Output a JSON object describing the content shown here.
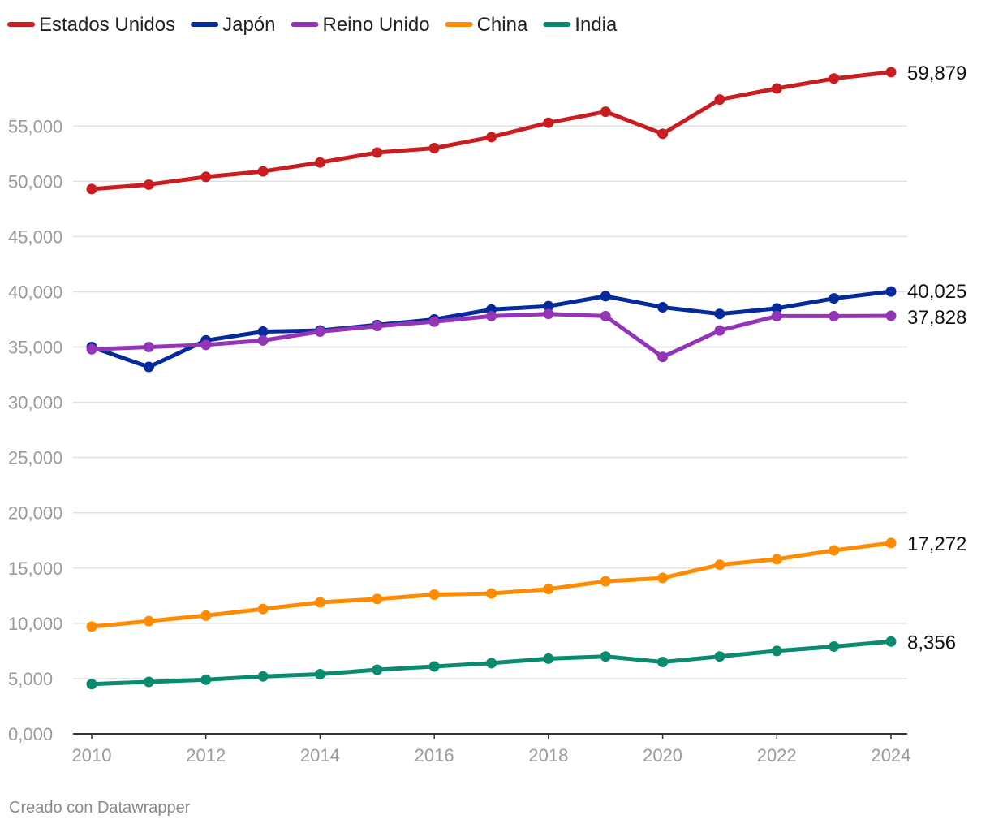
{
  "footer": "Creado con Datawrapper",
  "colors": {
    "grid": "#e0e0e0",
    "axis": "#333333",
    "tick_text": "#9a9a9a"
  },
  "chart_data": {
    "type": "line",
    "x": [
      2010,
      2011,
      2012,
      2013,
      2014,
      2015,
      2016,
      2017,
      2018,
      2019,
      2020,
      2021,
      2022,
      2023,
      2024
    ],
    "ylim": [
      0,
      62000
    ],
    "y_ticks": [
      0,
      5000,
      10000,
      15000,
      20000,
      25000,
      30000,
      35000,
      40000,
      45000,
      50000,
      55000
    ],
    "y_tick_labels": [
      "0,000",
      "5,000",
      "10,000",
      "15,000",
      "20,000",
      "25,000",
      "30,000",
      "35,000",
      "40,000",
      "45,000",
      "50,000",
      "55,000"
    ],
    "x_ticks": [
      2010,
      2012,
      2014,
      2016,
      2018,
      2020,
      2022,
      2024
    ],
    "x_tick_labels": [
      "2010",
      "2012",
      "2014",
      "2016",
      "2018",
      "2020",
      "2022",
      "2024"
    ],
    "grid": true,
    "legend_position": "top-left",
    "series": [
      {
        "name": "Estados Unidos",
        "color": "#c91d22",
        "values": [
          49300,
          49700,
          50400,
          50900,
          51700,
          52600,
          53000,
          54000,
          55300,
          56300,
          54300,
          57400,
          58400,
          59300,
          59879
        ],
        "end_label": "59,879"
      },
      {
        "name": "Japón",
        "color": "#042a9b",
        "values": [
          35000,
          33200,
          35600,
          36400,
          36500,
          37000,
          37500,
          38400,
          38700,
          39600,
          38600,
          38000,
          38500,
          39400,
          40025
        ],
        "end_label": "40,025"
      },
      {
        "name": "Reino Unido",
        "color": "#9435b8",
        "values": [
          34800,
          35000,
          35200,
          35600,
          36400,
          36900,
          37300,
          37800,
          38000,
          37800,
          34100,
          36500,
          37800,
          37800,
          37828
        ],
        "end_label": "37,828"
      },
      {
        "name": "China",
        "color": "#ff8c00",
        "values": [
          9700,
          10200,
          10700,
          11300,
          11900,
          12200,
          12600,
          12700,
          13100,
          13800,
          14100,
          15300,
          15800,
          16600,
          17272
        ],
        "end_label": "17,272"
      },
      {
        "name": "India",
        "color": "#0a8a6e",
        "values": [
          4500,
          4700,
          4900,
          5200,
          5400,
          5800,
          6100,
          6400,
          6800,
          7000,
          6500,
          7000,
          7500,
          7900,
          8356
        ],
        "end_label": "8,356"
      }
    ]
  }
}
